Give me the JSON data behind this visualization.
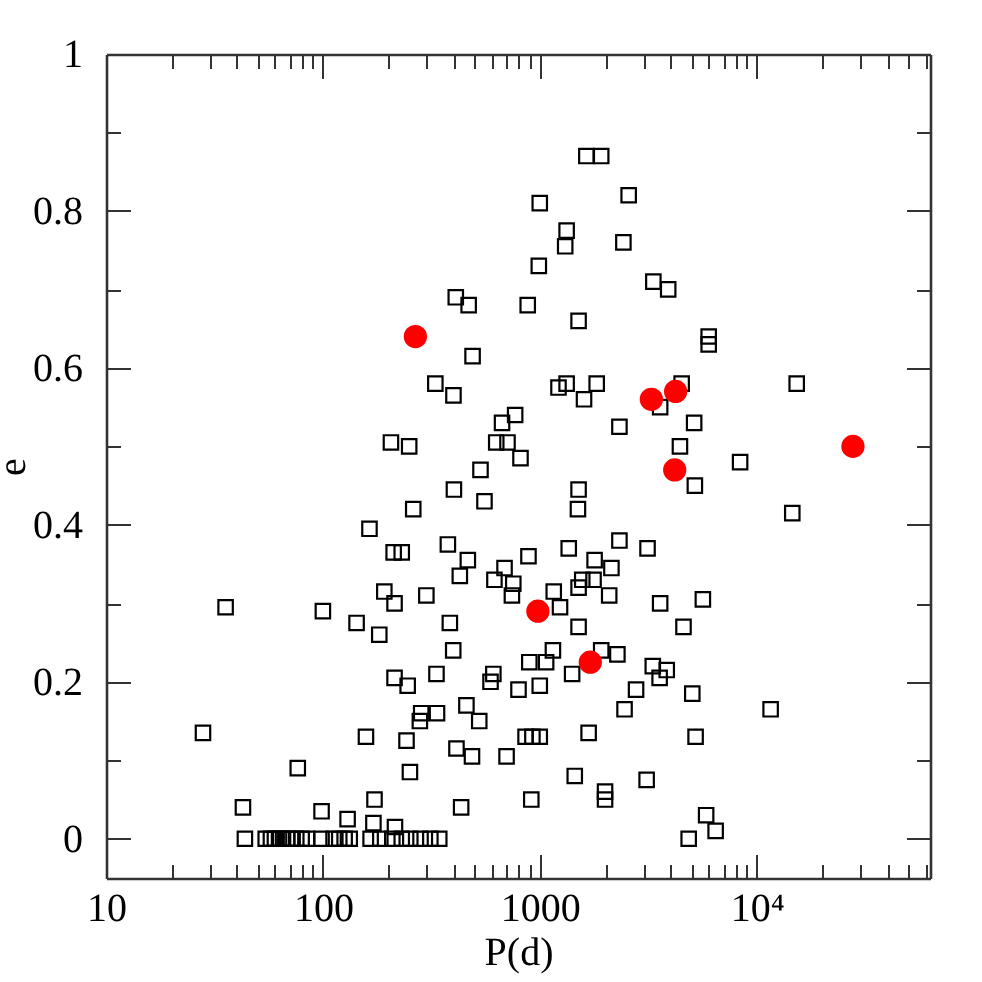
{
  "chart_data": {
    "type": "scatter",
    "xlabel": "P(d)",
    "ylabel": "e",
    "log": "x",
    "xlim": [
      10,
      63000
    ],
    "ylim": [
      -0.05,
      1
    ],
    "xticks": [
      10,
      {
        "value": 20,
        "label": null
      },
      {
        "value": 30,
        "label": null
      },
      {
        "value": 40,
        "label": null
      },
      {
        "value": 50,
        "label": null
      },
      {
        "value": 60,
        "label": null
      },
      {
        "value": 70,
        "label": null
      },
      {
        "value": 80,
        "label": null
      },
      {
        "value": 90,
        "label": null
      },
      100,
      {
        "value": 200,
        "label": null
      },
      {
        "value": 300,
        "label": null
      },
      {
        "value": 400,
        "label": null
      },
      {
        "value": 500,
        "label": null
      },
      {
        "value": 600,
        "label": null
      },
      {
        "value": 700,
        "label": null
      },
      {
        "value": 800,
        "label": null
      },
      {
        "value": 900,
        "label": null
      },
      1000,
      {
        "value": 2000,
        "label": null
      },
      {
        "value": 3000,
        "label": null
      },
      {
        "value": 4000,
        "label": null
      },
      {
        "value": 5000,
        "label": null
      },
      {
        "value": 6000,
        "label": null
      },
      {
        "value": 7000,
        "label": null
      },
      {
        "value": 8000,
        "label": null
      },
      {
        "value": 9000,
        "label": null
      },
      {
        "value": 10000,
        "label": "10⁴"
      },
      {
        "value": 20000,
        "label": null
      },
      {
        "value": 30000,
        "label": null
      },
      {
        "value": 40000,
        "label": null
      },
      {
        "value": 50000,
        "label": null
      },
      {
        "value": 60000,
        "label": null
      }
    ],
    "yticks": [
      0,
      {
        "value": 0.1,
        "label": null
      },
      0.2,
      {
        "value": 0.3,
        "label": null
      },
      0.4,
      {
        "value": 0.5,
        "label": null
      },
      0.6,
      {
        "value": 0.7,
        "label": null
      },
      0.8,
      {
        "value": 0.9,
        "label": null
      },
      1
    ],
    "series": [
      {
        "color": "#000000",
        "marker": "square",
        "x": [
          1640,
          1920,
          1000,
          2570,
          1330,
          1310,
          2430,
          990,
          3340,
          3910,
          410,
          470,
          880,
          1510,
          490,
          6010,
          6010,
          330,
          400,
          15300,
          1220,
          1330,
          1830,
          1600,
          3590,
          4510,
          5150,
          2330,
          4430,
          206,
          250,
          770,
          670,
          630,
          710,
          815,
          533,
          402,
          556,
          5190,
          8390,
          14600,
          1510,
          1500,
          261,
          164,
          212,
          231,
          377,
          466,
          428,
          618,
          688,
          755,
          744,
          887,
          192,
          214,
          300,
          35.6,
          100,
          143,
          182,
          385,
          399,
          214,
          246,
          334,
          611,
          593,
          798,
          895,
          1000,
          28,
          76.6,
          158,
          243,
          284,
          280,
          336,
          459,
          526,
          413,
          487,
          703,
          860,
          925,
          1000,
          252,
          42.8,
          98.6,
          130,
          173,
          171,
          215,
          434,
          914,
          1360,
          1790,
          2330,
          3140,
          2140,
          1160,
          1570,
          1510,
          1770,
          2090,
          1240,
          1510,
          3590,
          5650,
          4600,
          1150,
          1070,
          1920,
          2280,
          1410,
          3320,
          3850,
          3570,
          2780,
          2460,
          5050,
          11600,
          1680,
          5230,
          1450,
          3110,
          2000,
          2000,
          5850,
          6470,
          4860,
          43.7,
          54.5,
          57.6,
          60.1,
          62.8,
          65.5,
          68.4,
          71.3,
          75.4,
          79.8,
          84.5,
          98.6,
          112,
          119,
          126,
          133,
          166,
          184,
          209,
          231,
          253,
          282,
          313,
          344
        ],
        "values": [
          0.87,
          0.87,
          0.81,
          0.82,
          0.775,
          0.755,
          0.76,
          0.73,
          0.71,
          0.7,
          0.69,
          0.68,
          0.68,
          0.66,
          0.615,
          0.64,
          0.63,
          0.58,
          0.565,
          0.58,
          0.575,
          0.58,
          0.58,
          0.56,
          0.55,
          0.58,
          0.53,
          0.525,
          0.5,
          0.505,
          0.5,
          0.54,
          0.53,
          0.505,
          0.505,
          0.485,
          0.47,
          0.445,
          0.43,
          0.45,
          0.48,
          0.415,
          0.445,
          0.42,
          0.42,
          0.395,
          0.365,
          0.365,
          0.375,
          0.355,
          0.335,
          0.33,
          0.345,
          0.325,
          0.31,
          0.36,
          0.315,
          0.3,
          0.31,
          0.295,
          0.29,
          0.275,
          0.26,
          0.275,
          0.24,
          0.205,
          0.195,
          0.21,
          0.21,
          0.2,
          0.19,
          0.225,
          0.195,
          0.135,
          0.09,
          0.13,
          0.125,
          0.16,
          0.15,
          0.16,
          0.17,
          0.15,
          0.115,
          0.105,
          0.105,
          0.13,
          0.13,
          0.13,
          0.085,
          0.04,
          0.035,
          0.025,
          0.05,
          0.02,
          0.015,
          0.04,
          0.05,
          0.37,
          0.355,
          0.38,
          0.37,
          0.345,
          0.315,
          0.33,
          0.32,
          0.33,
          0.31,
          0.295,
          0.27,
          0.3,
          0.305,
          0.27,
          0.24,
          0.225,
          0.24,
          0.235,
          0.21,
          0.22,
          0.215,
          0.205,
          0.19,
          0.165,
          0.185,
          0.165,
          0.135,
          0.13,
          0.08,
          0.075,
          0.06,
          0.05,
          0.03,
          0.01,
          0,
          0,
          0,
          0,
          0,
          0,
          0,
          0,
          0,
          0,
          0,
          0,
          0,
          0,
          0,
          0,
          0,
          0,
          0,
          0,
          0,
          0,
          0,
          0,
          0
        ]
      },
      {
        "color": "#ff0000",
        "marker": "circle",
        "x": [
          267,
          3270,
          4230,
          4190,
          27800,
          980,
          1710
        ],
        "values": [
          0.64,
          0.56,
          0.57,
          0.47,
          0.5,
          0.29,
          0.225
        ]
      }
    ]
  }
}
